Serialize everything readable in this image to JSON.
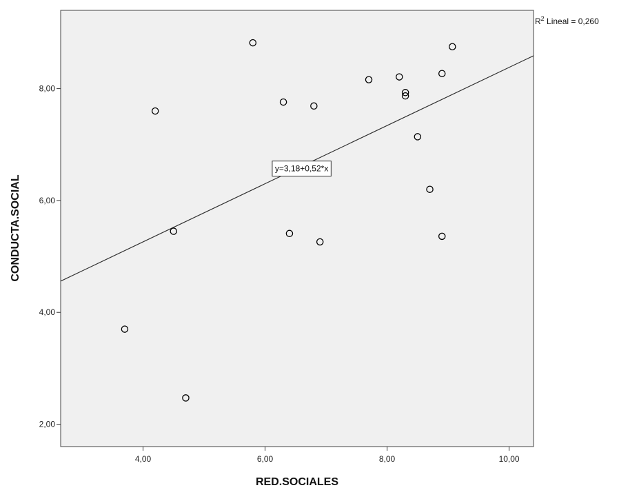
{
  "chart_data": {
    "type": "scatter",
    "xlabel": "RED.SOCIALES",
    "ylabel": "CONDUCTA.SOCIAL",
    "xlim": [
      2.65,
      10.4
    ],
    "ylim": [
      1.6,
      9.4
    ],
    "x_ticks": [
      4,
      6,
      8,
      10
    ],
    "x_tick_labels": [
      "4,00",
      "6,00",
      "8,00",
      "10,00"
    ],
    "y_ticks": [
      2,
      4,
      6,
      8
    ],
    "y_tick_labels": [
      "2,00",
      "4,00",
      "6,00",
      "8,00"
    ],
    "grid": false,
    "background_color": "#f0f0f0",
    "marker_color": "#000000",
    "points": [
      {
        "x": 3.7,
        "y": 3.7
      },
      {
        "x": 4.2,
        "y": 7.6
      },
      {
        "x": 4.5,
        "y": 5.45
      },
      {
        "x": 4.7,
        "y": 2.47
      },
      {
        "x": 5.8,
        "y": 8.82
      },
      {
        "x": 6.3,
        "y": 7.76
      },
      {
        "x": 6.4,
        "y": 5.41
      },
      {
        "x": 6.8,
        "y": 7.69
      },
      {
        "x": 6.9,
        "y": 5.26
      },
      {
        "x": 7.7,
        "y": 8.16
      },
      {
        "x": 8.2,
        "y": 8.21
      },
      {
        "x": 8.3,
        "y": 7.93
      },
      {
        "x": 8.3,
        "y": 7.87
      },
      {
        "x": 8.5,
        "y": 7.14
      },
      {
        "x": 8.7,
        "y": 6.2
      },
      {
        "x": 8.9,
        "y": 8.27
      },
      {
        "x": 8.9,
        "y": 5.36
      },
      {
        "x": 9.07,
        "y": 8.75
      }
    ],
    "fit_line": {
      "intercept": 3.18,
      "slope": 0.52,
      "equation_label": "y=3,18+0,52*x",
      "equation_anchor": {
        "x": 6.6,
        "y": 6.57
      }
    },
    "r2_label": {
      "prefix": "R",
      "superscript": "2",
      "suffix": " Lineal = 0,260"
    }
  }
}
